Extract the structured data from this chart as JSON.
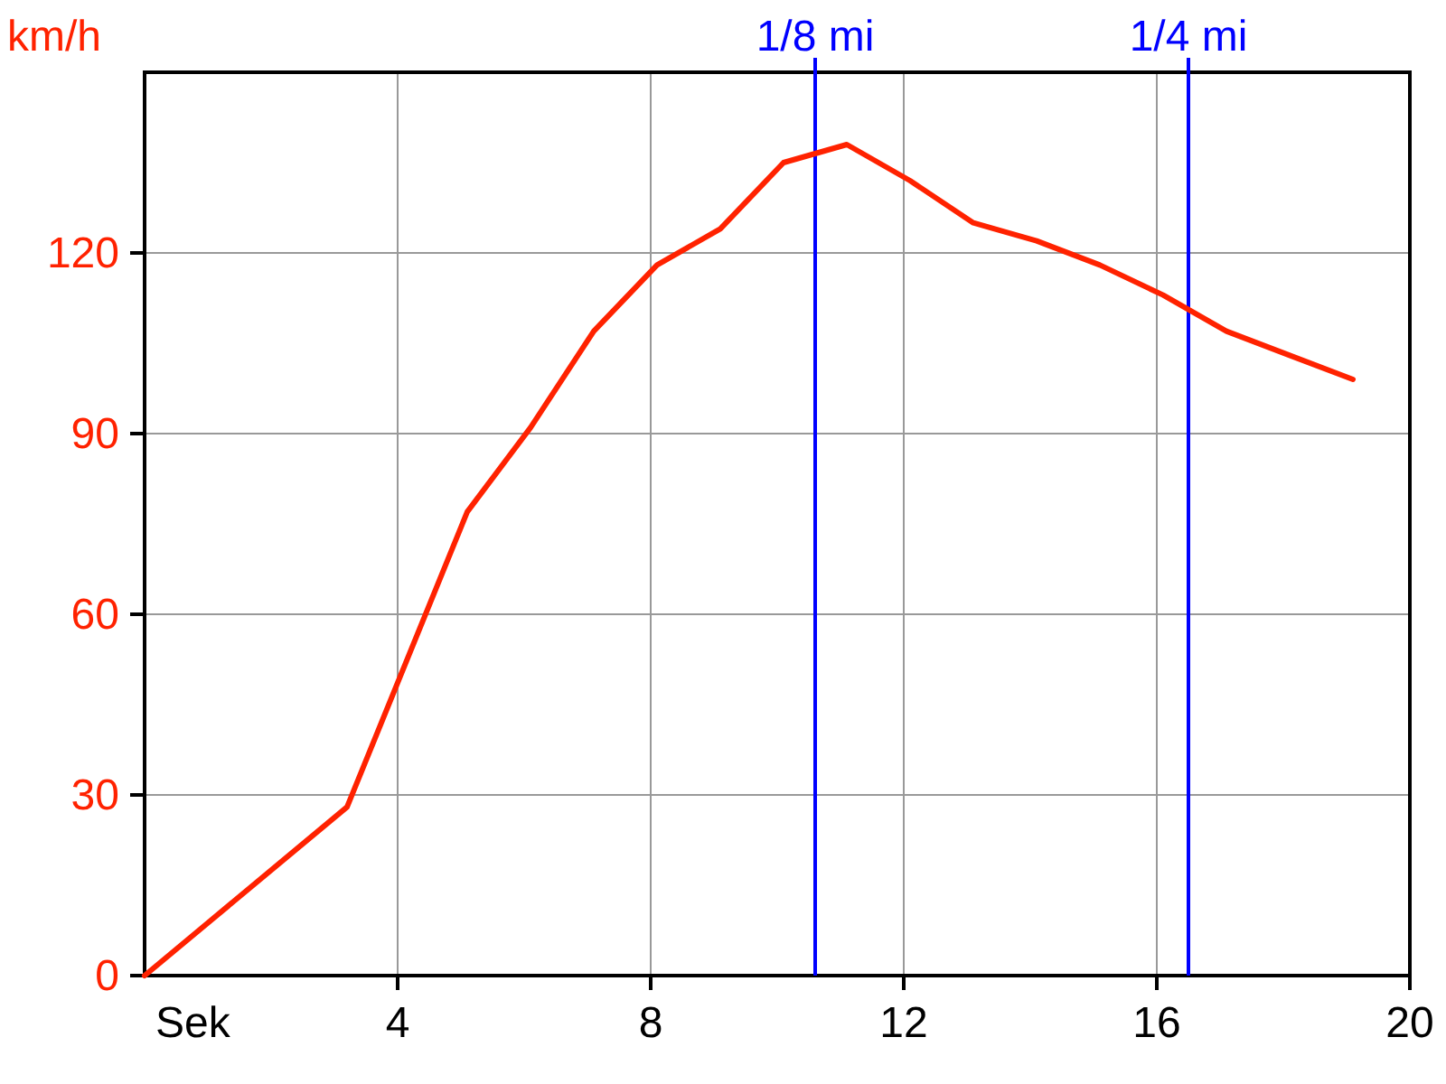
{
  "chart_data": {
    "type": "line",
    "xlabel": "Sek",
    "ylabel": "km/h",
    "x": [
      0,
      3.2,
      5.1,
      6.1,
      7.1,
      8.1,
      9.1,
      10.1,
      11.1,
      12.1,
      13.1,
      14.1,
      15.1,
      16.1,
      17.1,
      18.1,
      19.1
    ],
    "series": [
      {
        "color": "#ff2200",
        "values": [
          0,
          28,
          77,
          91,
          107,
          118,
          124,
          135,
          138,
          132,
          125,
          122,
          118,
          113,
          107,
          103,
          99
        ]
      }
    ],
    "xlim": [
      0,
      20
    ],
    "xticks": [
      4,
      8,
      12,
      16,
      20
    ],
    "ylim": [
      0,
      150
    ],
    "yticks": [
      0,
      30,
      60,
      90,
      120
    ],
    "grid": true,
    "ref_lines": [
      {
        "axis": "x",
        "value": 10.6,
        "label": "1/8 mi",
        "color": "#0000ff"
      },
      {
        "axis": "x",
        "value": 16.5,
        "label": "1/4 mi",
        "color": "#0000ff"
      }
    ]
  }
}
